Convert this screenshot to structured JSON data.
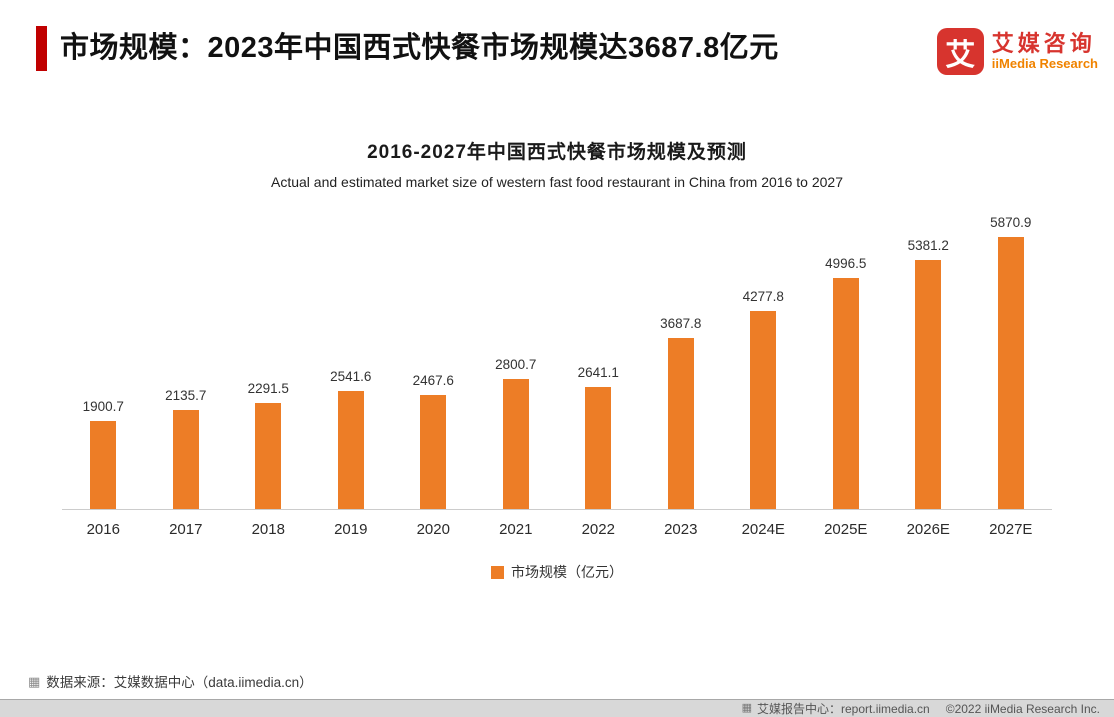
{
  "header": {
    "title": "市场规模：2023年中国西式快餐市场规模达3687.8亿元",
    "accent_color": "#c00000"
  },
  "logo": {
    "icon_char": "艾",
    "name_cn": "艾媒咨询",
    "name_en": "iiMedia Research"
  },
  "chart_data": {
    "type": "bar",
    "title": "2016-2027年中国西式快餐市场规模及预测",
    "subtitle": "Actual and estimated market size of western fast food restaurant in China from 2016 to 2027",
    "categories": [
      "2016",
      "2017",
      "2018",
      "2019",
      "2020",
      "2021",
      "2022",
      "2023",
      "2024E",
      "2025E",
      "2026E",
      "2027E"
    ],
    "values": [
      1900.7,
      2135.7,
      2291.5,
      2541.6,
      2467.6,
      2800.7,
      2641.1,
      3687.8,
      4277.8,
      4996.5,
      5381.2,
      5870.9
    ],
    "unit": "亿元",
    "bar_color": "#ed7d26",
    "legend": "市场规模（亿元）",
    "legend_position": "bottom",
    "ylim": [
      0,
      6000
    ],
    "grid": false
  },
  "source": {
    "text": "数据来源：艾媒数据中心（data.iimedia.cn）"
  },
  "footer": {
    "left": "艾媒报告中心：report.iimedia.cn",
    "right": "©2022 iiMedia Research Inc."
  }
}
